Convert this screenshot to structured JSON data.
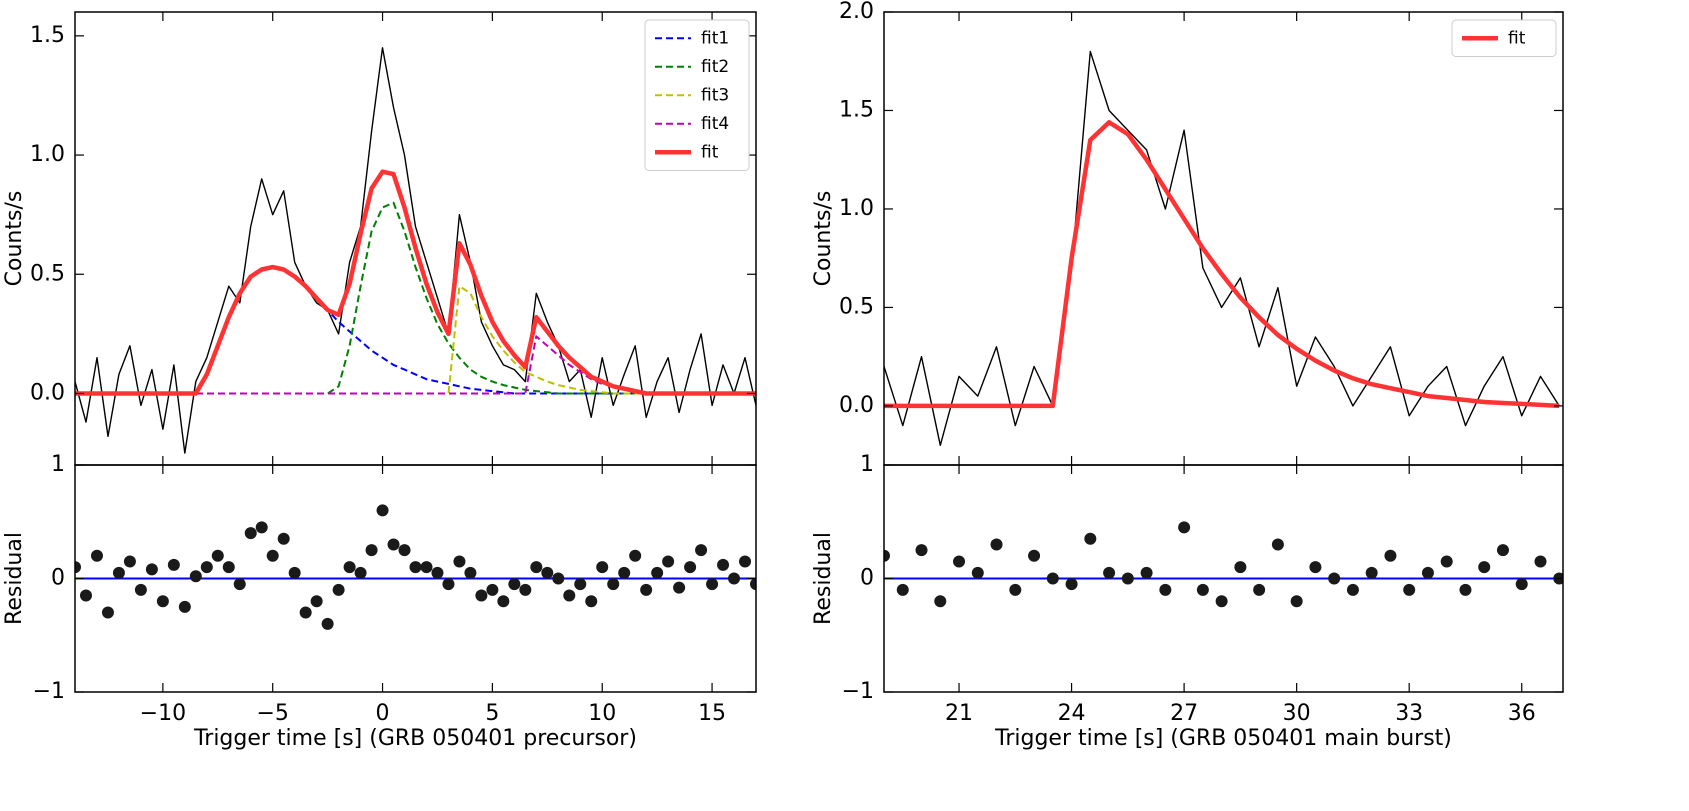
{
  "chart_data": [
    {
      "type": "line",
      "ylabel": "Counts/s",
      "x": [
        -14,
        -13.5,
        -13,
        -12.5,
        -12,
        -11.5,
        -11,
        -10.5,
        -10,
        -9.5,
        -9,
        -8.5,
        -8,
        -7.5,
        -7,
        -6.5,
        -6,
        -5.5,
        -5,
        -4.5,
        -4,
        -3.5,
        -3,
        -2.5,
        -2,
        -1.5,
        -1,
        -0.5,
        0,
        0.5,
        1,
        1.5,
        2,
        2.5,
        3,
        3.5,
        4,
        4.5,
        5,
        5.5,
        6,
        6.5,
        7,
        7.5,
        8,
        8.5,
        9,
        9.5,
        10,
        10.5,
        11,
        11.5,
        12,
        12.5,
        13,
        13.5,
        14,
        14.5,
        15,
        15.5,
        16,
        16.5,
        17
      ],
      "series": [
        {
          "color": "#000000",
          "linestyle": "solid",
          "values": [
            0.05,
            -0.12,
            0.15,
            -0.18,
            0.08,
            0.2,
            -0.05,
            0.1,
            -0.15,
            0.12,
            -0.25,
            0.05,
            0.15,
            0.3,
            0.45,
            0.38,
            0.7,
            0.9,
            0.75,
            0.85,
            0.55,
            0.45,
            0.38,
            0.35,
            0.25,
            0.55,
            0.7,
            1.1,
            1.45,
            1.2,
            1.0,
            0.7,
            0.55,
            0.4,
            0.25,
            0.75,
            0.55,
            0.3,
            0.2,
            0.12,
            0.1,
            0.05,
            0.42,
            0.3,
            0.2,
            0.05,
            0.1,
            -0.1,
            0.15,
            -0.05,
            0.08,
            0.2,
            -0.1,
            0.05,
            0.15,
            -0.08,
            0.1,
            0.25,
            -0.05,
            0.12,
            0.0,
            0.15,
            -0.05
          ]
        },
        {
          "name": "fit1",
          "color": "#0000ff",
          "linestyle": "dashed",
          "values": [
            0,
            0,
            0,
            0,
            0,
            0,
            0,
            0,
            0,
            0,
            0,
            0,
            0.08,
            0.2,
            0.32,
            0.42,
            0.49,
            0.52,
            0.53,
            0.52,
            0.49,
            0.45,
            0.4,
            0.35,
            0.3,
            0.26,
            0.22,
            0.18,
            0.15,
            0.12,
            0.1,
            0.08,
            0.06,
            0.05,
            0.04,
            0.03,
            0.02,
            0.015,
            0.01,
            0.005,
            0,
            0,
            0,
            0,
            0,
            0,
            0,
            0,
            0,
            0,
            0,
            0,
            0,
            0,
            0,
            0,
            0,
            0,
            0,
            0,
            0,
            0,
            0
          ]
        },
        {
          "name": "fit2",
          "color": "#008000",
          "linestyle": "dashed",
          "values": [
            0,
            0,
            0,
            0,
            0,
            0,
            0,
            0,
            0,
            0,
            0,
            0,
            0,
            0,
            0,
            0,
            0,
            0,
            0,
            0,
            0,
            0,
            0,
            0,
            0.03,
            0.2,
            0.45,
            0.68,
            0.78,
            0.8,
            0.68,
            0.53,
            0.4,
            0.29,
            0.21,
            0.15,
            0.1,
            0.07,
            0.05,
            0.035,
            0.025,
            0.015,
            0.01,
            0.005,
            0,
            0,
            0,
            0,
            0,
            0,
            0,
            0,
            0,
            0,
            0,
            0,
            0,
            0,
            0,
            0,
            0,
            0,
            0
          ]
        },
        {
          "name": "fit3",
          "color": "#bfbf00",
          "linestyle": "dashed",
          "values": [
            0,
            0,
            0,
            0,
            0,
            0,
            0,
            0,
            0,
            0,
            0,
            0,
            0,
            0,
            0,
            0,
            0,
            0,
            0,
            0,
            0,
            0,
            0,
            0,
            0,
            0,
            0,
            0,
            0,
            0,
            0,
            0,
            0,
            0,
            0,
            0.45,
            0.42,
            0.32,
            0.24,
            0.18,
            0.13,
            0.09,
            0.07,
            0.05,
            0.035,
            0.025,
            0.015,
            0.01,
            0.005,
            0,
            0,
            0,
            0,
            0,
            0,
            0,
            0,
            0,
            0,
            0,
            0,
            0,
            0
          ]
        },
        {
          "name": "fit4",
          "color": "#bf00bf",
          "linestyle": "dashed",
          "values": [
            0,
            0,
            0,
            0,
            0,
            0,
            0,
            0,
            0,
            0,
            0,
            0,
            0,
            0,
            0,
            0,
            0,
            0,
            0,
            0,
            0,
            0,
            0,
            0,
            0,
            0,
            0,
            0,
            0,
            0,
            0,
            0,
            0,
            0,
            0,
            0,
            0,
            0,
            0,
            0,
            0,
            0,
            0.24,
            0.2,
            0.16,
            0.12,
            0.09,
            0.06,
            0.04,
            0.03,
            0.02,
            0.01,
            0,
            0,
            0,
            0,
            0,
            0,
            0,
            0,
            0,
            0,
            0
          ]
        },
        {
          "name": "fit",
          "color": "#ff3333",
          "linestyle": "solid",
          "values": [
            0,
            0,
            0,
            0,
            0,
            0,
            0,
            0,
            0,
            0,
            0,
            0,
            0.08,
            0.2,
            0.32,
            0.42,
            0.49,
            0.52,
            0.53,
            0.52,
            0.49,
            0.45,
            0.4,
            0.35,
            0.33,
            0.46,
            0.67,
            0.86,
            0.93,
            0.92,
            0.78,
            0.61,
            0.46,
            0.34,
            0.25,
            0.63,
            0.54,
            0.41,
            0.3,
            0.22,
            0.16,
            0.11,
            0.32,
            0.26,
            0.2,
            0.15,
            0.11,
            0.07,
            0.05,
            0.03,
            0.02,
            0.01,
            0,
            0,
            0,
            0,
            0,
            0,
            0,
            0,
            0,
            0,
            0
          ]
        }
      ],
      "xlim": [
        -14,
        17
      ],
      "ylim": [
        -0.3,
        1.6
      ],
      "xticks": [
        -10,
        -5,
        0,
        5,
        10,
        15
      ],
      "yticks": [
        {
          "value": 0,
          "label": "0.0"
        },
        0.5,
        {
          "value": 1,
          "label": "1.0"
        },
        1.5
      ],
      "legend": "upper right"
    },
    {
      "type": "scatter",
      "ylabel": "Residual",
      "xlabel": "Trigger time [s] (GRB 050401 precursor)",
      "x": [
        -14,
        -13.5,
        -13,
        -12.5,
        -12,
        -11.5,
        -11,
        -10.5,
        -10,
        -9.5,
        -9,
        -8.5,
        -8,
        -7.5,
        -7,
        -6.5,
        -6,
        -5.5,
        -5,
        -4.5,
        -4,
        -3.5,
        -3,
        -2.5,
        -2,
        -1.5,
        -1,
        -0.5,
        0,
        0.5,
        1,
        1.5,
        2,
        2.5,
        3,
        3.5,
        4,
        4.5,
        5,
        5.5,
        6,
        6.5,
        7,
        7.5,
        8,
        8.5,
        9,
        9.5,
        10,
        10.5,
        11,
        11.5,
        12,
        12.5,
        13,
        13.5,
        14,
        14.5,
        15,
        15.5,
        16,
        16.5,
        17
      ],
      "series": [
        {
          "color": "#1a1a1a",
          "values": [
            0.1,
            -0.15,
            0.2,
            -0.3,
            0.05,
            0.15,
            -0.1,
            0.08,
            -0.2,
            0.12,
            -0.25,
            0.02,
            0.1,
            0.2,
            0.1,
            -0.05,
            0.4,
            0.45,
            0.2,
            0.35,
            0.05,
            -0.3,
            -0.2,
            -0.4,
            -0.1,
            0.1,
            0.05,
            0.25,
            0.6,
            0.3,
            0.25,
            0.1,
            0.1,
            0.05,
            -0.05,
            0.15,
            0.05,
            -0.15,
            -0.1,
            -0.2,
            -0.05,
            -0.1,
            0.1,
            0.05,
            0.0,
            -0.15,
            -0.05,
            -0.2,
            0.1,
            -0.05,
            0.05,
            0.2,
            -0.1,
            0.05,
            0.15,
            -0.08,
            0.1,
            0.25,
            -0.05,
            0.12,
            0.0,
            0.15,
            -0.05
          ]
        }
      ],
      "reference_line": {
        "y": 0,
        "color": "#0000ff"
      },
      "xlim": [
        -14,
        17
      ],
      "ylim": [
        -1,
        1
      ],
      "xticks": [
        {
          "value": -10,
          "label": "−10"
        },
        {
          "value": -5,
          "label": "−5"
        },
        0,
        5,
        10,
        15
      ],
      "yticks": [
        {
          "value": -1,
          "label": "−1"
        },
        0,
        1
      ]
    },
    {
      "type": "line",
      "ylabel": "Counts/s",
      "x": [
        19,
        19.5,
        20,
        20.5,
        21,
        21.5,
        22,
        22.5,
        23,
        23.5,
        24,
        24.5,
        25,
        25.5,
        26,
        26.5,
        27,
        27.5,
        28,
        28.5,
        29,
        29.5,
        30,
        30.5,
        31,
        31.5,
        32,
        32.5,
        33,
        33.5,
        34,
        34.5,
        35,
        35.5,
        36,
        36.5,
        37
      ],
      "series": [
        {
          "color": "#000000",
          "linestyle": "solid",
          "values": [
            0.2,
            -0.1,
            0.25,
            -0.2,
            0.15,
            0.05,
            0.3,
            -0.1,
            0.2,
            0.0,
            0.7,
            1.8,
            1.5,
            1.4,
            1.3,
            1.0,
            1.4,
            0.7,
            0.5,
            0.65,
            0.3,
            0.6,
            0.1,
            0.35,
            0.2,
            0.0,
            0.15,
            0.3,
            -0.05,
            0.1,
            0.2,
            -0.1,
            0.1,
            0.25,
            -0.05,
            0.15,
            0.0
          ]
        },
        {
          "name": "fit",
          "color": "#ff3333",
          "linestyle": "solid",
          "values": [
            0,
            0,
            0,
            0,
            0,
            0,
            0,
            0,
            0,
            0,
            0.75,
            1.35,
            1.44,
            1.38,
            1.25,
            1.1,
            0.95,
            0.8,
            0.67,
            0.55,
            0.45,
            0.36,
            0.29,
            0.23,
            0.18,
            0.14,
            0.11,
            0.09,
            0.07,
            0.05,
            0.04,
            0.03,
            0.02,
            0.015,
            0.01,
            0.005,
            0
          ]
        }
      ],
      "xlim": [
        19,
        37.1
      ],
      "ylim": [
        -0.3,
        2.0
      ],
      "xticks": [
        21,
        24,
        27,
        30,
        33,
        36
      ],
      "yticks": [
        {
          "value": 0,
          "label": "0.0"
        },
        0.5,
        {
          "value": 1,
          "label": "1.0"
        },
        1.5,
        {
          "value": 2,
          "label": "2.0"
        }
      ],
      "legend": "upper right"
    },
    {
      "type": "scatter",
      "ylabel": "Residual",
      "xlabel": "Trigger time [s] (GRB 050401 main burst)",
      "x": [
        19,
        19.5,
        20,
        20.5,
        21,
        21.5,
        22,
        22.5,
        23,
        23.5,
        24,
        24.5,
        25,
        25.5,
        26,
        26.5,
        27,
        27.5,
        28,
        28.5,
        29,
        29.5,
        30,
        30.5,
        31,
        31.5,
        32,
        32.5,
        33,
        33.5,
        34,
        34.5,
        35,
        35.5,
        36,
        36.5,
        37
      ],
      "series": [
        {
          "color": "#1a1a1a",
          "values": [
            0.2,
            -0.1,
            0.25,
            -0.2,
            0.15,
            0.05,
            0.3,
            -0.1,
            0.2,
            0.0,
            -0.05,
            0.35,
            0.05,
            0.0,
            0.05,
            -0.1,
            0.45,
            -0.1,
            -0.2,
            0.1,
            -0.1,
            0.3,
            -0.2,
            0.1,
            0.0,
            -0.1,
            0.05,
            0.2,
            -0.1,
            0.05,
            0.15,
            -0.1,
            0.1,
            0.25,
            -0.05,
            0.15,
            0.0
          ]
        }
      ],
      "reference_line": {
        "y": 0,
        "color": "#0000ff"
      },
      "xlim": [
        19,
        37.1
      ],
      "ylim": [
        -1,
        1
      ],
      "xticks": [
        21,
        24,
        27,
        30,
        33,
        36
      ],
      "yticks": [
        {
          "value": -1,
          "label": "−1"
        },
        0,
        1
      ]
    }
  ]
}
